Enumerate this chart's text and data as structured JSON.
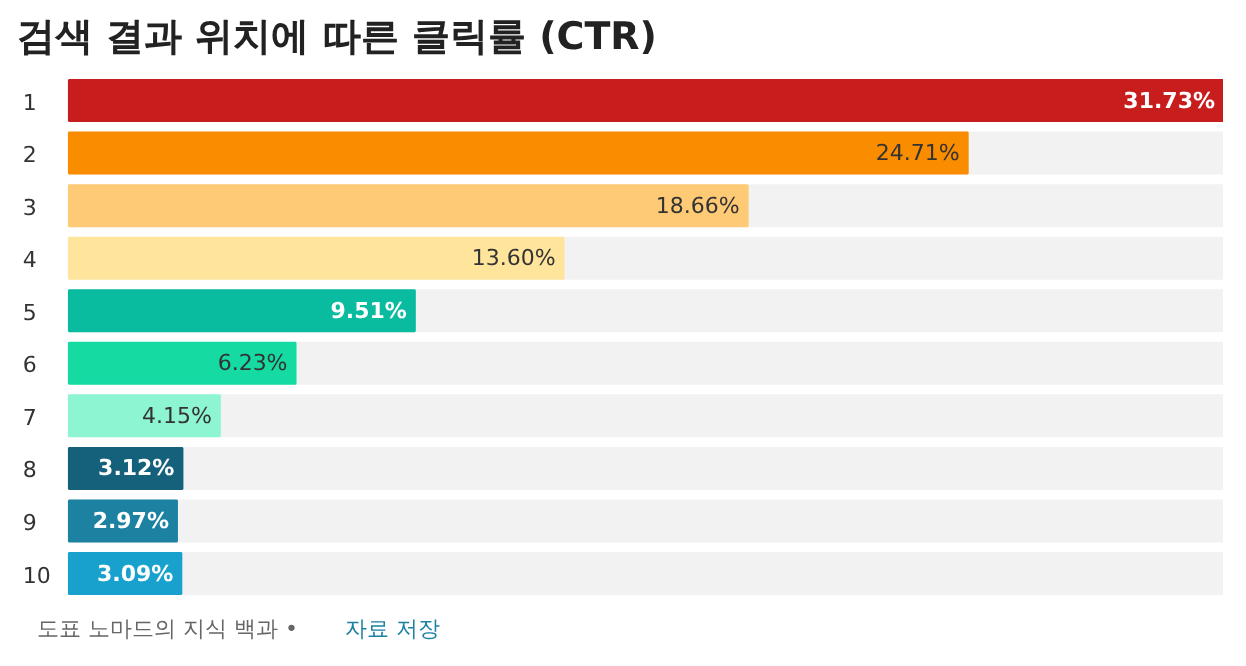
{
  "chart_data": {
    "type": "bar",
    "orientation": "horizontal",
    "title": "검색 결과 위치에 따른 클릭률 (CTR)",
    "categories": [
      "1",
      "2",
      "3",
      "4",
      "5",
      "6",
      "7",
      "8",
      "9",
      "10"
    ],
    "values": [
      31.73,
      24.71,
      18.66,
      13.6,
      9.51,
      6.23,
      4.15,
      3.12,
      2.97,
      3.09
    ],
    "value_labels": [
      "31.73%",
      "24.71%",
      "18.66%",
      "13.60%",
      "9.51%",
      "6.23%",
      "4.15%",
      "3.12%",
      "2.97%",
      "3.09%"
    ],
    "colors": [
      "#c71e1d",
      "#fa8c00",
      "#ffca76",
      "#ffe59c",
      "#09bb9f",
      "#15dba3",
      "#8ef5d2",
      "#15607a",
      "#1d81a2",
      "#18a1cd"
    ],
    "annotations": [
      "도표 노마드의 지식 백과 •",
      "자료 저장"
    ],
    "grid": false
  }
}
